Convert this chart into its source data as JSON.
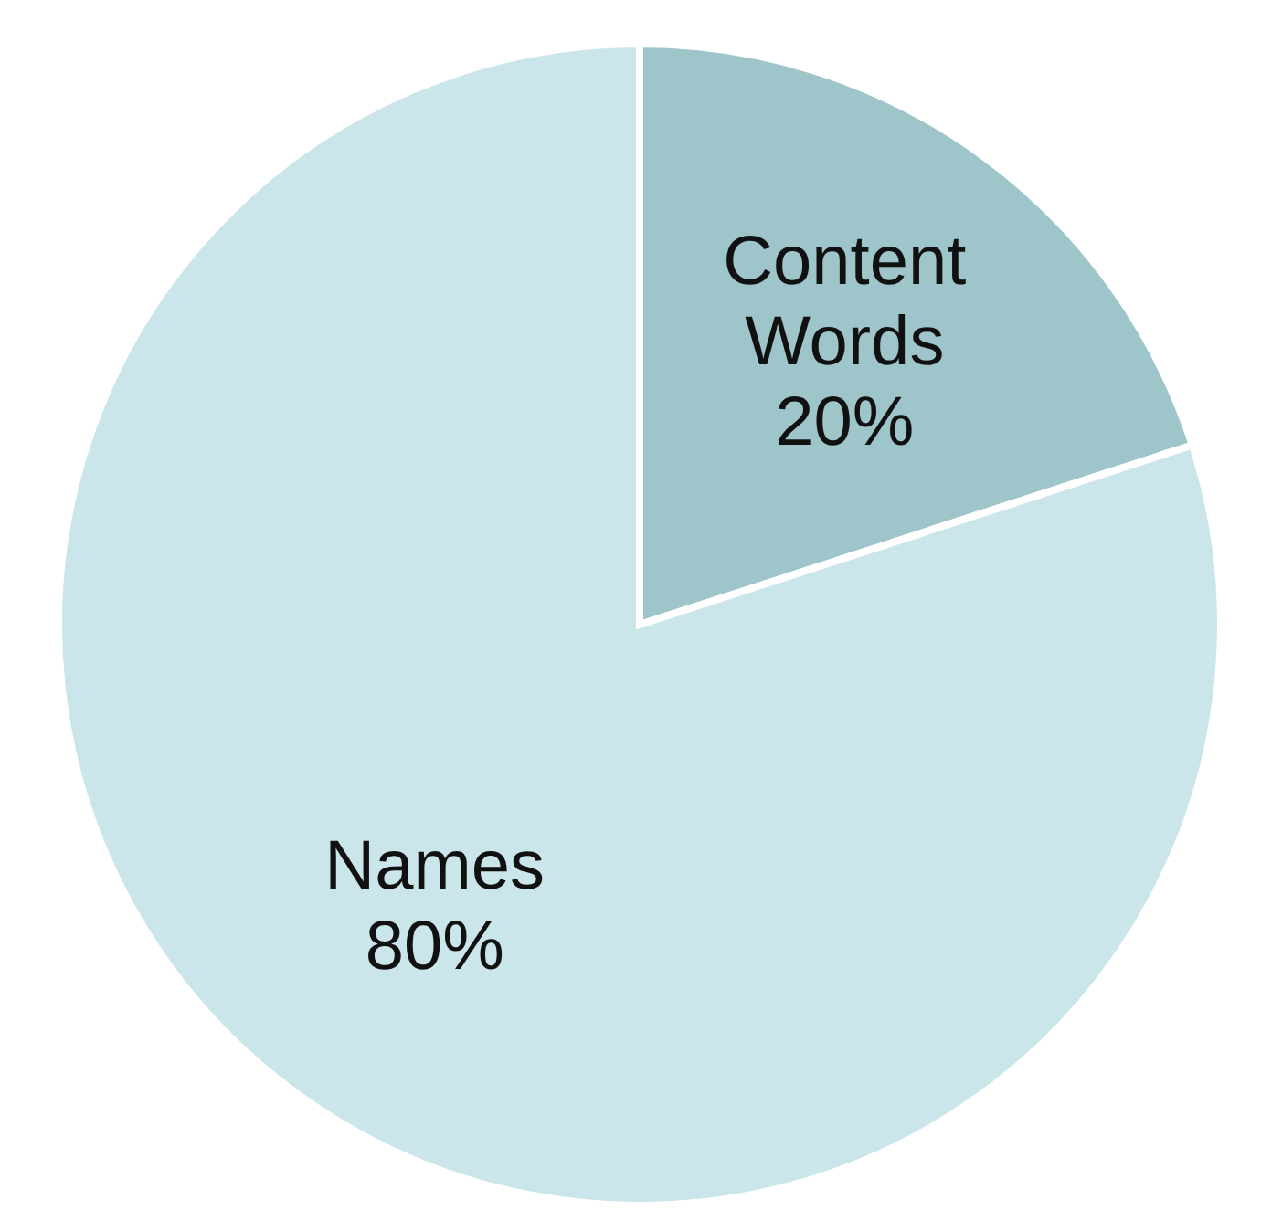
{
  "chart_data": {
    "type": "pie",
    "categories": [
      "Content Words",
      "Names"
    ],
    "values": [
      20,
      80
    ],
    "colors": [
      "#9ec6ca",
      "#cbe6ea"
    ],
    "value_labels": [
      "20%",
      "80%"
    ],
    "legend": false
  }
}
